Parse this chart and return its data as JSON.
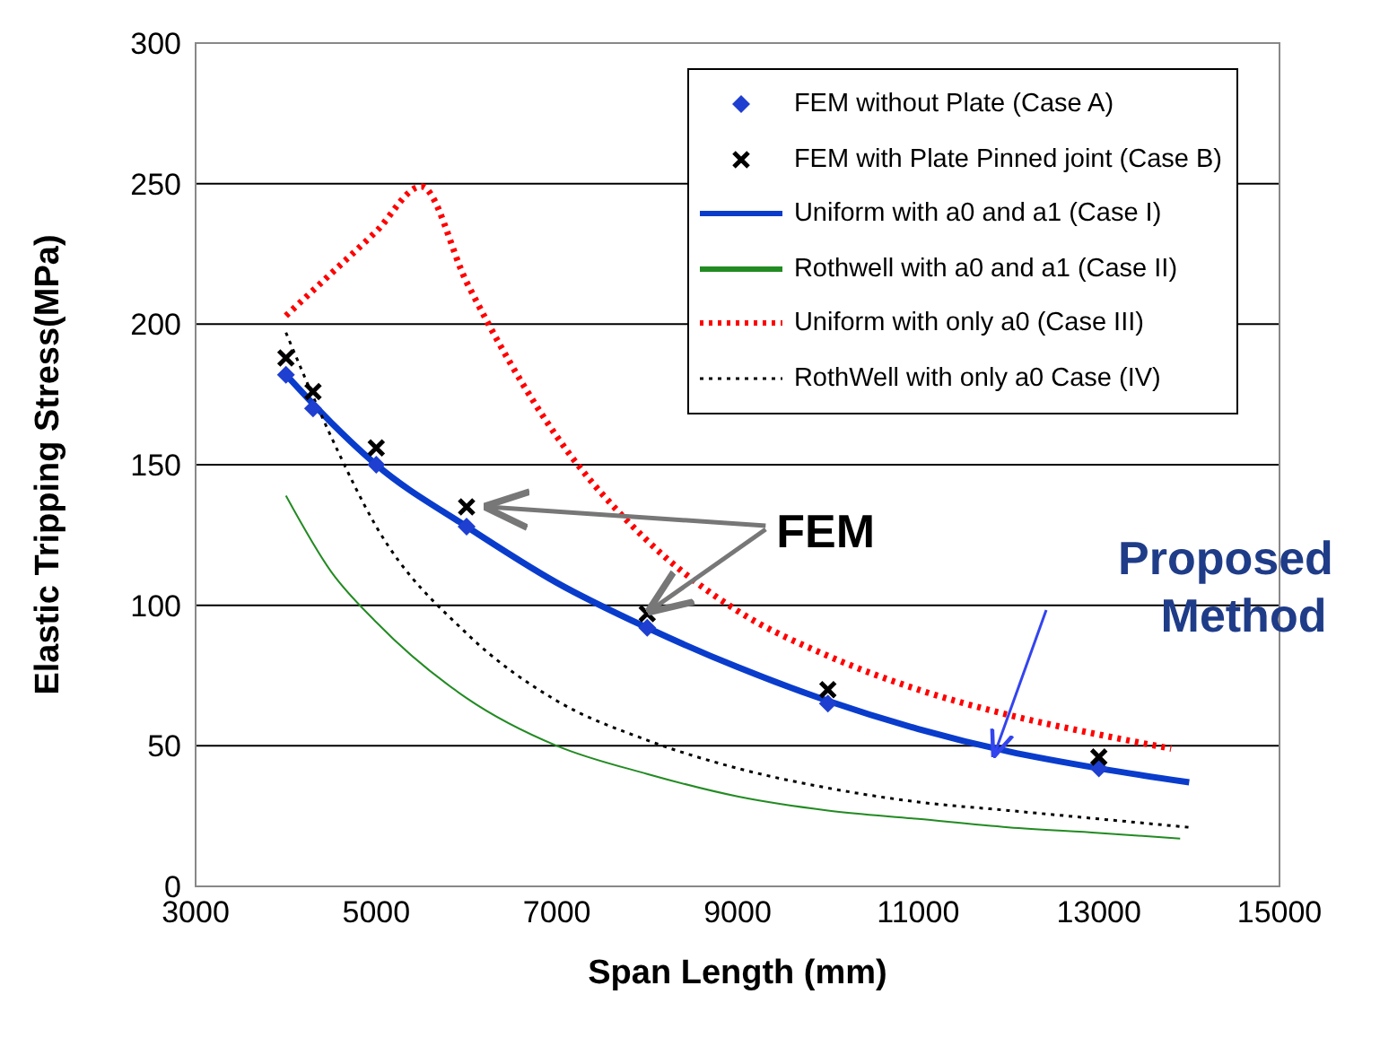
{
  "chart_data": {
    "type": "line",
    "xlabel": "Span Length (mm)",
    "ylabel": "Elastic Tripping Stress(MPa)",
    "xlim": [
      3000,
      15000
    ],
    "xticks": [
      3000,
      5000,
      7000,
      9000,
      11000,
      13000,
      15000
    ],
    "ylim": [
      0,
      300
    ],
    "yticks": [
      0,
      50,
      100,
      150,
      200,
      250,
      300
    ],
    "grid": "y",
    "legend": "top right",
    "annotations": [
      {
        "text": "FEM",
        "x": 8000,
        "y": 97
      },
      "Proposed Method"
    ],
    "series": [
      {
        "name": "FEM without Plate (Case A)",
        "type": "scatter",
        "marker": "diamond",
        "color": "#1f3fd0",
        "x": [
          4000,
          4300,
          5000,
          6000,
          8000,
          10000,
          13000
        ],
        "values": [
          182,
          170,
          150,
          128,
          92,
          65,
          42
        ]
      },
      {
        "name": "FEM with Plate Pinned joint (Case B)",
        "type": "scatter",
        "marker": "cross",
        "color": "#000000",
        "x": [
          4000,
          4300,
          5000,
          6000,
          8000,
          10000,
          13000
        ],
        "values": [
          188,
          176,
          156,
          135,
          97,
          70,
          46
        ]
      },
      {
        "name": "Uniform with a0 and a1 (Case I)",
        "type": "line",
        "line_style": "solid",
        "color": "#0a3ccc",
        "x": [
          4000,
          4500,
          5000,
          6000,
          7000,
          8000,
          9000,
          10000,
          11000,
          12000,
          13000,
          14000
        ],
        "values": [
          182,
          165,
          150,
          128,
          108,
          92,
          78,
          66,
          56,
          48,
          42,
          37
        ]
      },
      {
        "name": "Rothwell with a0 and a1 (Case II)",
        "type": "line",
        "line_style": "solid",
        "color": "#228b22",
        "x": [
          4000,
          4500,
          5000,
          6000,
          7000,
          8000,
          9000,
          10000,
          11000,
          12000,
          13000,
          13900
        ],
        "values": [
          139,
          112,
          94,
          67,
          50,
          40,
          32,
          27,
          24,
          21,
          19,
          17
        ]
      },
      {
        "name": "Uniform with only a0 (Case III)",
        "type": "line",
        "line_style": "dotted",
        "color": "#ff0000",
        "x": [
          4000,
          4500,
          5000,
          5500,
          6000,
          7000,
          8000,
          9000,
          10000,
          11000,
          12000,
          13000,
          13800
        ],
        "values": [
          203,
          218,
          233,
          249,
          215,
          160,
          123,
          98,
          82,
          70,
          61,
          54,
          49
        ]
      },
      {
        "name": "RothWell with only a0 Case (IV)",
        "type": "line",
        "line_style": "dotted",
        "color": "#000000",
        "x": [
          4000,
          4500,
          5000,
          6000,
          7000,
          8000,
          9000,
          10000,
          11000,
          12000,
          13000,
          14000
        ],
        "values": [
          197,
          160,
          128,
          90,
          66,
          52,
          42,
          35,
          30,
          27,
          24,
          21
        ]
      }
    ]
  }
}
